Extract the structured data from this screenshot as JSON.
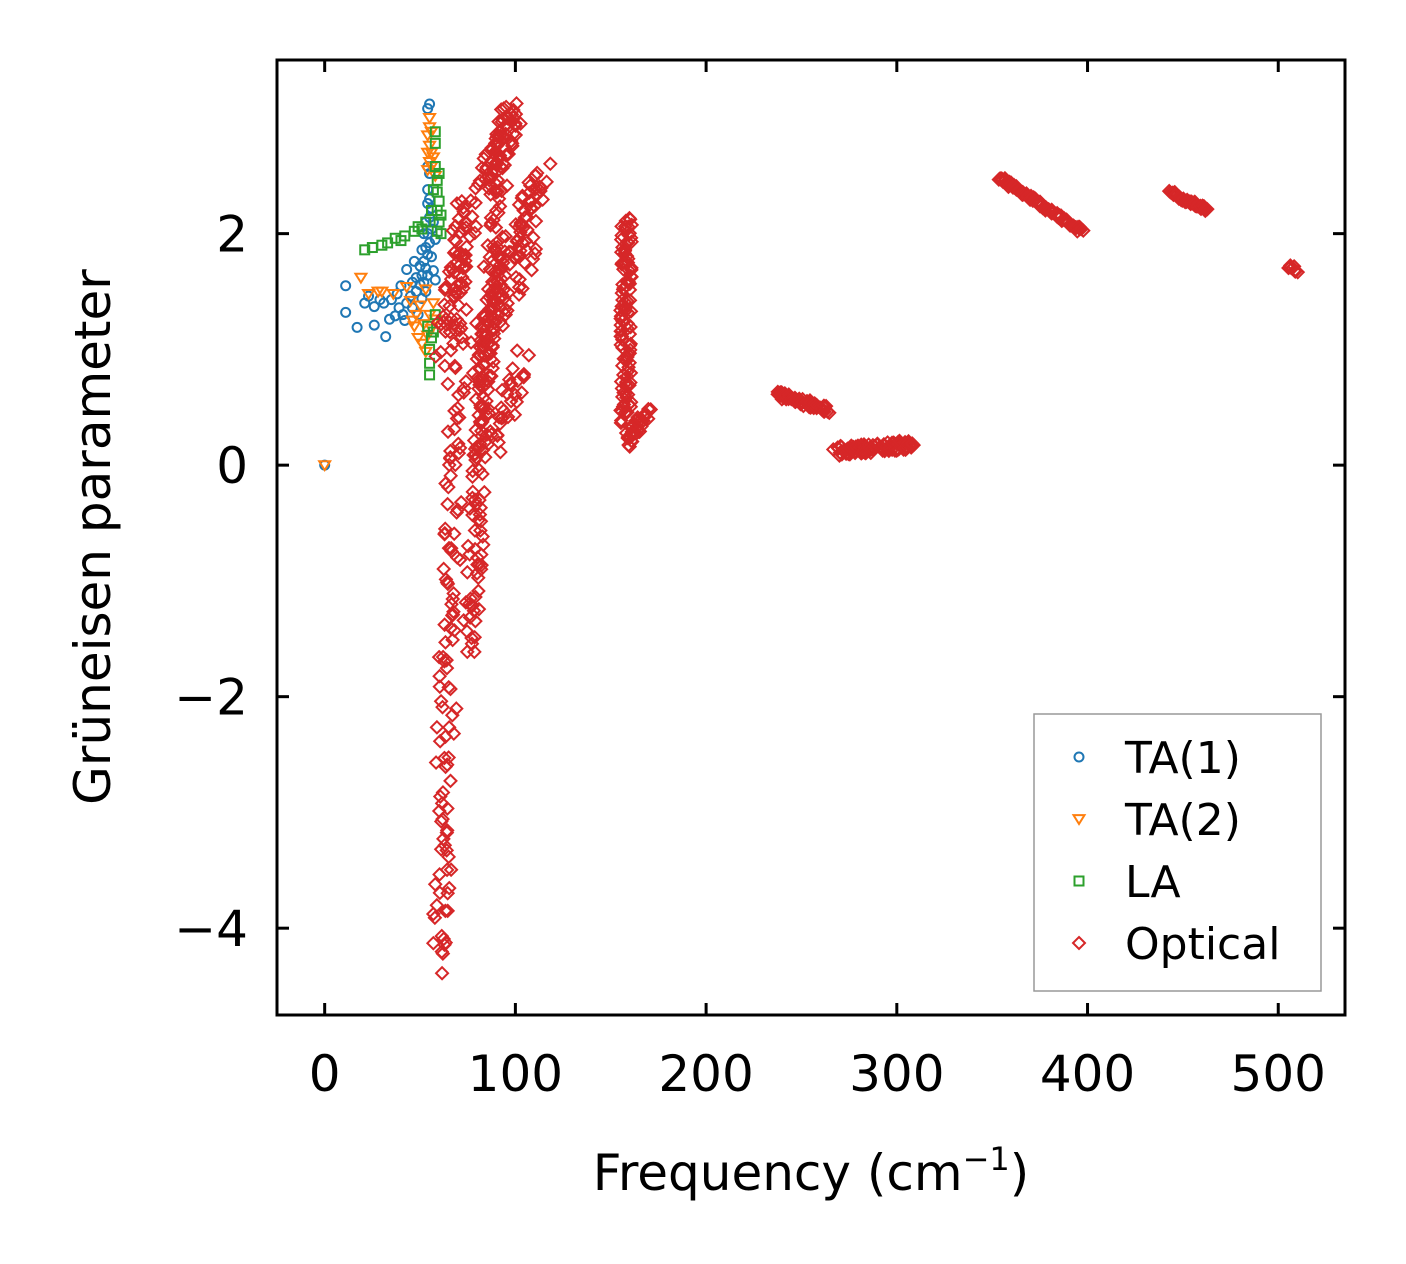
{
  "chart_data": {
    "type": "scatter",
    "title": "",
    "xlabel": "Frequency (cm",
    "xlabel_sup": "−1",
    "xlabel_end": ")",
    "ylabel": "Grüneisen parameter",
    "xlim": [
      -25,
      535
    ],
    "ylim": [
      -4.75,
      3.5
    ],
    "xticks": [
      0,
      100,
      200,
      300,
      400,
      500
    ],
    "xtick_labels": [
      "0",
      "100",
      "200",
      "300",
      "400",
      "500"
    ],
    "yticks": [
      2,
      0,
      -2,
      -4
    ],
    "ytick_labels": [
      "2",
      "0",
      "−2",
      "−4"
    ],
    "grid": false,
    "legend_position": "bottom-right",
    "series": [
      {
        "name": "TA(1)",
        "marker": "circle",
        "color": "#1f77b4",
        "points": [
          [
            0,
            0
          ],
          [
            11,
            1.55
          ],
          [
            11,
            1.32
          ],
          [
            17,
            1.19
          ],
          [
            21,
            1.4
          ],
          [
            23,
            1.46
          ],
          [
            26,
            1.37
          ],
          [
            26,
            1.21
          ],
          [
            29,
            1.43
          ],
          [
            31,
            1.4
          ],
          [
            32,
            1.11
          ],
          [
            34,
            1.26
          ],
          [
            35,
            1.43
          ],
          [
            37,
            1.29
          ],
          [
            38,
            1.48
          ],
          [
            39,
            1.36
          ],
          [
            40,
            1.55
          ],
          [
            41,
            1.3
          ],
          [
            42,
            1.25
          ],
          [
            43,
            1.4
          ],
          [
            43,
            1.69
          ],
          [
            45,
            1.46
          ],
          [
            46,
            1.58
          ],
          [
            46,
            1.36
          ],
          [
            47,
            1.76
          ],
          [
            48,
            1.5
          ],
          [
            48,
            1.62
          ],
          [
            49,
            1.3
          ],
          [
            50,
            1.56
          ],
          [
            50,
            1.72
          ],
          [
            51,
            1.44
          ],
          [
            51,
            1.64
          ],
          [
            51,
            1.86
          ],
          [
            52,
            1.58
          ],
          [
            52,
            1.76
          ],
          [
            52,
            2.0
          ],
          [
            53,
            1.5
          ],
          [
            53,
            1.7
          ],
          [
            53,
            1.88
          ],
          [
            53,
            2.1
          ],
          [
            54,
            1.64
          ],
          [
            54,
            1.82
          ],
          [
            54,
            2.0
          ],
          [
            54,
            2.26
          ],
          [
            54,
            2.38
          ],
          [
            54,
            2.58
          ],
          [
            54,
            3.08
          ],
          [
            55,
            1.92
          ],
          [
            55,
            2.14
          ],
          [
            55,
            2.3
          ],
          [
            55,
            2.52
          ],
          [
            55,
            3.12
          ],
          [
            56,
            2.04
          ],
          [
            56,
            2.22
          ],
          [
            56,
            1.8
          ],
          [
            57,
            2.1
          ],
          [
            57,
            1.68
          ],
          [
            58,
            1.95
          ],
          [
            58,
            1.6
          ]
        ]
      },
      {
        "name": "TA(2)",
        "marker": "triangle-down",
        "color": "#ff7f0e",
        "points": [
          [
            0,
            0
          ],
          [
            19,
            1.62
          ],
          [
            23,
            1.48
          ],
          [
            28,
            1.5
          ],
          [
            30,
            1.5
          ],
          [
            36,
            1.48
          ],
          [
            43,
            1.54
          ],
          [
            45,
            1.42
          ],
          [
            46,
            1.25
          ],
          [
            47,
            1.2
          ],
          [
            48,
            1.3
          ],
          [
            49,
            1.1
          ],
          [
            50,
            1.38
          ],
          [
            51,
            1.05
          ],
          [
            52,
            1.22
          ],
          [
            53,
            0.98
          ],
          [
            53,
            1.52
          ],
          [
            54,
            1.12
          ],
          [
            54,
            2.55
          ],
          [
            54,
            2.7
          ],
          [
            54,
            2.85
          ],
          [
            55,
            1.3
          ],
          [
            55,
            2.62
          ],
          [
            55,
            2.76
          ],
          [
            55,
            2.92
          ],
          [
            55,
            3.0
          ],
          [
            56,
            1.18
          ],
          [
            56,
            2.58
          ],
          [
            56,
            2.7
          ],
          [
            56,
            2.88
          ],
          [
            57,
            1.4
          ],
          [
            57,
            2.66
          ],
          [
            58,
            1.26
          ],
          [
            58,
            2.5
          ]
        ]
      },
      {
        "name": "LA",
        "marker": "square",
        "color": "#2ca02c",
        "points": [
          [
            21,
            1.86
          ],
          [
            25,
            1.88
          ],
          [
            30,
            1.9
          ],
          [
            33,
            1.92
          ],
          [
            37,
            1.96
          ],
          [
            40,
            1.94
          ],
          [
            42,
            1.98
          ],
          [
            47,
            2.02
          ],
          [
            49,
            2.06
          ],
          [
            51,
            2.04
          ],
          [
            53,
            2.1
          ],
          [
            54,
            1.2
          ],
          [
            55,
            0.78
          ],
          [
            55,
            0.88
          ],
          [
            55,
            1.0
          ],
          [
            56,
            1.1
          ],
          [
            56,
            2.2
          ],
          [
            57,
            1.15
          ],
          [
            57,
            2.38
          ],
          [
            58,
            1.3
          ],
          [
            58,
            2.58
          ],
          [
            58,
            2.78
          ],
          [
            58,
            2.88
          ],
          [
            59,
            2.02
          ],
          [
            59,
            2.2
          ],
          [
            59,
            2.36
          ],
          [
            59,
            2.46
          ],
          [
            60,
            2.1
          ],
          [
            60,
            2.28
          ],
          [
            60,
            2.52
          ],
          [
            61,
            2.16
          ],
          [
            61,
            2.0
          ]
        ]
      },
      {
        "name": "Optical",
        "marker": "diamond",
        "color": "#d62728",
        "segments": [
          {
            "x": [
              60,
              72
            ],
            "y": [
              -4.35,
              2.3
            ],
            "count": 140,
            "jitter": [
              5,
              0.1
            ]
          },
          {
            "x": [
              76,
              88
            ],
            "y": [
              -1.6,
              1.9
            ],
            "count": 110,
            "jitter": [
              4,
              0.1
            ]
          },
          {
            "x": [
              62,
              75
            ],
            "y": [
              1.0,
              2.2
            ],
            "count": 50,
            "jitter": [
              5,
              0.15
            ]
          },
          {
            "x": [
              80,
              95
            ],
            "y": [
              0.1,
              2.95
            ],
            "count": 80,
            "jitter": [
              4,
              0.1
            ]
          },
          {
            "x": [
              84,
              100
            ],
            "y": [
              2.4,
              3.1
            ],
            "count": 60,
            "jitter": [
              6,
              0.1
            ]
          },
          {
            "x": [
              95,
              115
            ],
            "y": [
              1.8,
              2.5
            ],
            "count": 50,
            "jitter": [
              4,
              0.15
            ]
          },
          {
            "x": [
              78,
              108
            ],
            "y": [
              0.9,
              1.9
            ],
            "count": 55,
            "jitter": [
              5,
              0.2
            ]
          },
          {
            "x": [
              88,
              104
            ],
            "y": [
              0.2,
              0.9
            ],
            "count": 30,
            "jitter": [
              4,
              0.15
            ]
          },
          {
            "x": [
              158,
              158
            ],
            "y": [
              0.4,
              2.15
            ],
            "count": 110,
            "jitter": [
              3,
              0.04
            ]
          },
          {
            "x": [
              158,
              168
            ],
            "y": [
              0.2,
              0.45
            ],
            "count": 40,
            "jitter": [
              3,
              0.05
            ]
          },
          {
            "x": [
              237,
              264
            ],
            "y": [
              0.62,
              0.48
            ],
            "count": 65,
            "jitter": [
              1.5,
              0.03
            ]
          },
          {
            "x": [
              268,
              310
            ],
            "y": [
              0.12,
              0.18
            ],
            "count": 100,
            "jitter": [
              2,
              0.04
            ]
          },
          {
            "x": [
              354,
              397
            ],
            "y": [
              2.48,
              2.02
            ],
            "count": 95,
            "jitter": [
              1,
              0.02
            ]
          },
          {
            "x": [
              443,
              463
            ],
            "y": [
              2.36,
              2.2
            ],
            "count": 50,
            "jitter": [
              1,
              0.02
            ]
          },
          {
            "x": [
              506,
              510
            ],
            "y": [
              1.72,
              1.68
            ],
            "count": 8,
            "jitter": [
              1,
              0.02
            ]
          }
        ]
      }
    ]
  }
}
